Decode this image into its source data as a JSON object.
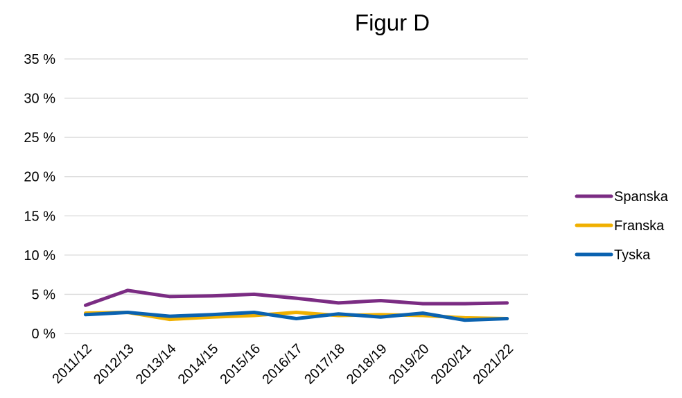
{
  "chart_data": {
    "type": "line",
    "title": "Figur D",
    "categories": [
      "2011/12",
      "2012/13",
      "2013/14",
      "2014/15",
      "2015/16",
      "2016/17",
      "2017/18",
      "2018/19",
      "2019/20",
      "2020/21",
      "2021/22"
    ],
    "ylim": [
      0,
      35
    ],
    "yticks": [
      0,
      5,
      10,
      15,
      20,
      25,
      30,
      35
    ],
    "ytick_labels": [
      "0 %",
      "5 %",
      "10 %",
      "15 %",
      "20 %",
      "25 %",
      "30 %",
      "35 %"
    ],
    "grid": true,
    "legend_position": "right",
    "series": [
      {
        "name": "Spanska",
        "color": "#7b2c83",
        "values": [
          3.6,
          5.5,
          4.7,
          4.8,
          5.0,
          4.5,
          3.9,
          4.2,
          3.8,
          3.8,
          3.9
        ]
      },
      {
        "name": "Franska",
        "color": "#f0b000",
        "values": [
          2.6,
          2.7,
          1.8,
          2.1,
          2.3,
          2.7,
          2.3,
          2.4,
          2.3,
          2.0,
          1.9
        ]
      },
      {
        "name": "Tyska",
        "color": "#0a62b0",
        "values": [
          2.4,
          2.7,
          2.2,
          2.4,
          2.7,
          1.9,
          2.5,
          2.1,
          2.6,
          1.7,
          1.9
        ]
      }
    ]
  }
}
